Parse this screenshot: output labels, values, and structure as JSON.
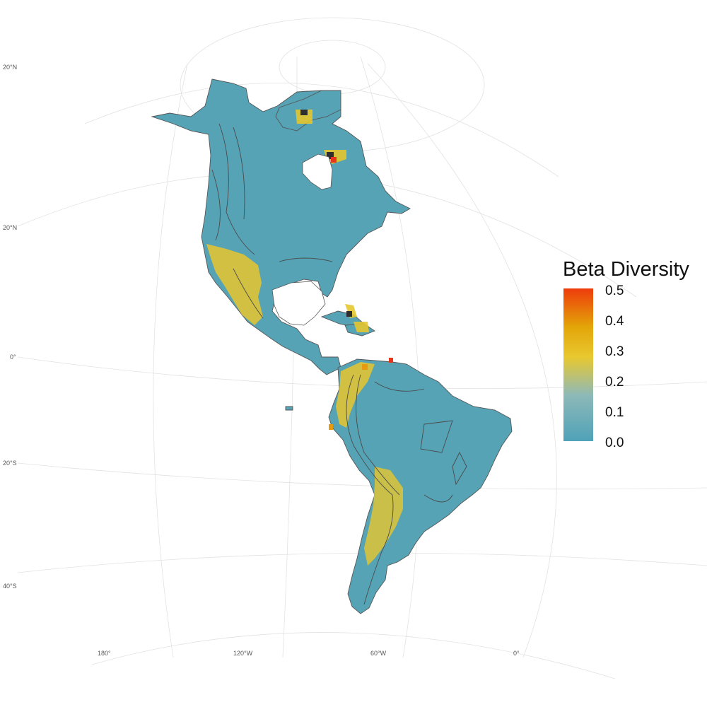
{
  "legend": {
    "title": "Beta Diversity",
    "ticks": [
      "0.5",
      "0.4",
      "0.3",
      "0.2",
      "0.1",
      "0.0"
    ],
    "colors": {
      "low": "#4fa2b8",
      "mid_low": "#8db9b8",
      "mid": "#e8c830",
      "mid_high": "#e3a508",
      "high": "#ee3b0c"
    }
  },
  "latitude_labels": [
    "20°N",
    "20°N",
    "0°",
    "20°S",
    "40°S"
  ],
  "longitude_labels": [
    "180°",
    "120°W",
    "60°W",
    "0°"
  ],
  "colors": {
    "land_base": "#56a3b6",
    "hotspot_yellow": "#e6c62e",
    "hotspot_orange": "#e59a10",
    "hotspot_red": "#e8341a",
    "hotspot_dark": "#2e2e2e",
    "grid": "#e2e2e2",
    "outline": "#555555"
  }
}
